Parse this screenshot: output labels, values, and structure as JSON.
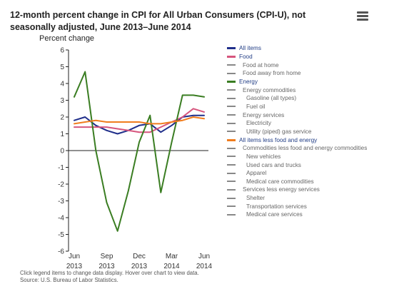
{
  "title": "12-month percent change in CPI for All Urban Consumers (CPI-U), not seasonally adjusted, June 2013–June 2014",
  "menu_icon": "hamburger-menu-icon",
  "footer": {
    "line1": "Click legend items to change data display. Hover over chart to view data.",
    "line2": "Source: U.S. Bureau of Labor Statistics."
  },
  "legend": [
    {
      "label": "All items",
      "color": "#1f2e8a",
      "indent": 0,
      "active": true
    },
    {
      "label": "Food",
      "color": "#d6557d",
      "indent": 0,
      "active": true
    },
    {
      "label": "Food at home",
      "color": "#888888",
      "indent": 1,
      "active": false
    },
    {
      "label": "Food away from home",
      "color": "#888888",
      "indent": 1,
      "active": false
    },
    {
      "label": "Energy",
      "color": "#3a7d22",
      "indent": 0,
      "active": true
    },
    {
      "label": "Energy commodities",
      "color": "#888888",
      "indent": 1,
      "active": false
    },
    {
      "label": "Gasoline (all types)",
      "color": "#888888",
      "indent": 2,
      "active": false
    },
    {
      "label": "Fuel oil",
      "color": "#888888",
      "indent": 2,
      "active": false
    },
    {
      "label": "Energy services",
      "color": "#888888",
      "indent": 1,
      "active": false
    },
    {
      "label": "Electricity",
      "color": "#888888",
      "indent": 2,
      "active": false
    },
    {
      "label": "Utility (piped) gas service",
      "color": "#888888",
      "indent": 2,
      "active": false
    },
    {
      "label": "All items less food and energy",
      "color": "#f07d1e",
      "indent": 0,
      "active": true
    },
    {
      "label": "Commodities less food and energy commodities",
      "color": "#888888",
      "indent": 1,
      "active": false
    },
    {
      "label": "New vehicles",
      "color": "#888888",
      "indent": 2,
      "active": false
    },
    {
      "label": "Used cars and trucks",
      "color": "#888888",
      "indent": 2,
      "active": false
    },
    {
      "label": "Apparel",
      "color": "#888888",
      "indent": 2,
      "active": false
    },
    {
      "label": "Medical care commodities",
      "color": "#888888",
      "indent": 2,
      "active": false
    },
    {
      "label": "Services less energy services",
      "color": "#888888",
      "indent": 1,
      "active": false
    },
    {
      "label": "Shelter",
      "color": "#888888",
      "indent": 2,
      "active": false
    },
    {
      "label": "Transportation services",
      "color": "#888888",
      "indent": 2,
      "active": false
    },
    {
      "label": "Medical care services",
      "color": "#888888",
      "indent": 2,
      "active": false
    }
  ],
  "chart_data": {
    "type": "line",
    "ylabel": "Percent change",
    "xlabel": "",
    "ylim": [
      -6,
      6
    ],
    "yticks": [
      "6",
      "5",
      "4",
      "3",
      "2",
      "1",
      "0",
      "-1",
      "-2",
      "-3",
      "-4",
      "-5",
      "-6"
    ],
    "x": [
      "Jun 2013",
      "Jul 2013",
      "Aug 2013",
      "Sep 2013",
      "Oct 2013",
      "Nov 2013",
      "Dec 2013",
      "Jan 2014",
      "Feb 2014",
      "Mar 2014",
      "Apr 2014",
      "May 2014",
      "Jun 2014"
    ],
    "xtick_labels": [
      {
        "line1": "Jun",
        "line2": "2013"
      },
      {
        "line1": "Sep",
        "line2": "2013"
      },
      {
        "line1": "Dec",
        "line2": "2013"
      },
      {
        "line1": "Mar",
        "line2": "2014"
      },
      {
        "line1": "Jun",
        "line2": "2014"
      }
    ],
    "grid": false,
    "legend_position": "right",
    "series": [
      {
        "name": "All items",
        "color": "#1f2e8a",
        "values": [
          1.8,
          2.0,
          1.5,
          1.2,
          1.0,
          1.2,
          1.5,
          1.6,
          1.1,
          1.5,
          2.0,
          2.1,
          2.1
        ]
      },
      {
        "name": "Food",
        "color": "#d6557d",
        "values": [
          1.4,
          1.4,
          1.4,
          1.4,
          1.3,
          1.2,
          1.1,
          1.1,
          1.4,
          1.7,
          2.0,
          2.5,
          2.3
        ]
      },
      {
        "name": "Energy",
        "color": "#3a7d22",
        "values": [
          3.2,
          4.7,
          0.0,
          -3.1,
          -4.8,
          -2.4,
          0.5,
          2.1,
          -2.5,
          0.5,
          3.3,
          3.3,
          3.2
        ]
      },
      {
        "name": "All items less food and energy",
        "color": "#f07d1e",
        "values": [
          1.6,
          1.7,
          1.8,
          1.7,
          1.7,
          1.7,
          1.7,
          1.6,
          1.6,
          1.7,
          1.8,
          2.0,
          1.9
        ]
      }
    ]
  }
}
